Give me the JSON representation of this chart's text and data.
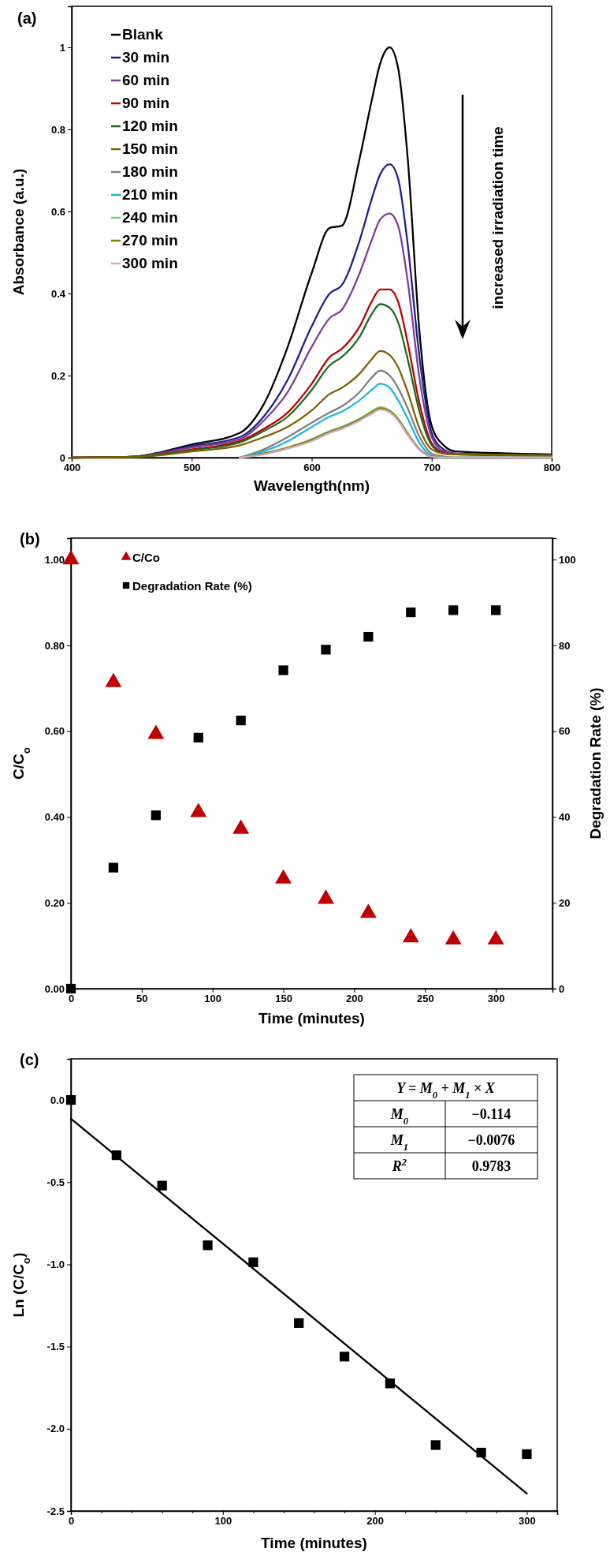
{
  "chart_data": [
    {
      "type": "line",
      "title": "(a)",
      "xlabel": "Wavelength(nm)",
      "ylabel": "Absorbance (a.u.)",
      "xlim": [
        400,
        800
      ],
      "xticks": [
        400,
        500,
        600,
        700,
        800
      ],
      "ylim": [
        0,
        1.1
      ],
      "yticks": [
        0,
        0.2,
        0.4,
        0.6,
        0.8,
        1
      ],
      "legend": "top left",
      "annotations": [
        "increased irradiation time"
      ],
      "x": [
        400,
        450,
        500,
        540,
        560,
        580,
        600,
        615,
        625,
        640,
        650,
        657,
        665,
        672,
        680,
        690,
        700,
        710,
        720,
        800
      ],
      "series": [
        {
          "name": "Blank",
          "color": "#000000",
          "values": [
            0,
            0.002,
            0.032,
            0.06,
            0.13,
            0.27,
            0.45,
            0.56,
            0.565,
            0.73,
            0.87,
            0.96,
            1.0,
            0.95,
            0.73,
            0.3,
            0.077,
            0.03,
            0.015,
            0.008
          ]
        },
        {
          "name": "30 min",
          "color": "#1f1f8f",
          "values": [
            0,
            0.002,
            0.028,
            0.05,
            0.1,
            0.19,
            0.32,
            0.4,
            0.42,
            0.53,
            0.63,
            0.69,
            0.715,
            0.68,
            0.52,
            0.24,
            0.06,
            0.02,
            0.01,
            0.006
          ]
        },
        {
          "name": "60 min",
          "color": "#7f3f98",
          "values": [
            0,
            0.002,
            0.025,
            0.045,
            0.09,
            0.16,
            0.27,
            0.34,
            0.36,
            0.45,
            0.53,
            0.58,
            0.595,
            0.565,
            0.43,
            0.19,
            0.05,
            0.015,
            0.01,
            0.005
          ]
        },
        {
          "name": "90 min",
          "color": "#c00000",
          "values": [
            0,
            0.002,
            0.02,
            0.04,
            0.07,
            0.11,
            0.18,
            0.245,
            0.265,
            0.32,
            0.38,
            0.41,
            0.41,
            0.38,
            0.28,
            0.13,
            0.035,
            0.012,
            0.008,
            0.005
          ]
        },
        {
          "name": "120  min",
          "color": "#1e6b1e",
          "values": [
            0,
            0.002,
            0.018,
            0.037,
            0.065,
            0.1,
            0.165,
            0.225,
            0.245,
            0.295,
            0.35,
            0.374,
            0.365,
            0.33,
            0.24,
            0.11,
            0.03,
            0.01,
            0.008,
            0.005
          ]
        },
        {
          "name": "150  min",
          "color": "#7f6000",
          "values": [
            0,
            0.001,
            0.015,
            0.03,
            0.05,
            0.075,
            0.115,
            0.155,
            0.17,
            0.205,
            0.24,
            0.26,
            0.25,
            0.22,
            0.16,
            0.07,
            0.02,
            0.01,
            0.008,
            0.006
          ]
        },
        {
          "name": "180 min",
          "color": "#808080",
          "values": [
            null,
            null,
            null,
            0,
            0.02,
            0.05,
            0.085,
            0.11,
            0.125,
            0.16,
            0.195,
            0.212,
            0.2,
            0.17,
            0.12,
            0.05,
            0.01,
            0.003,
            0,
            0
          ]
        },
        {
          "name": "210 min",
          "color": "#1fb4e6",
          "values": [
            null,
            null,
            null,
            0,
            0.015,
            0.04,
            0.075,
            0.1,
            0.112,
            0.14,
            0.165,
            0.18,
            0.17,
            0.14,
            0.095,
            0.035,
            0.005,
            0,
            0,
            0
          ]
        },
        {
          "name": "240 min",
          "color": "#7fc97f",
          "values": [
            null,
            null,
            null,
            0,
            0.01,
            0.025,
            0.045,
            0.065,
            0.075,
            0.095,
            0.113,
            0.123,
            0.115,
            0.095,
            0.06,
            0.02,
            0.003,
            0,
            0,
            0
          ]
        },
        {
          "name": "270 min",
          "color": "#7f7f00",
          "values": [
            null,
            null,
            null,
            0,
            0.01,
            0.024,
            0.043,
            0.063,
            0.073,
            0.093,
            0.11,
            0.12,
            0.113,
            0.093,
            0.058,
            0.02,
            0.003,
            0,
            0,
            0
          ]
        },
        {
          "name": "300 min",
          "color": "#d8a8c8",
          "values": [
            null,
            null,
            null,
            0,
            0.008,
            0.022,
            0.04,
            0.06,
            0.07,
            0.09,
            0.107,
            0.117,
            0.11,
            0.09,
            0.055,
            0.018,
            0.002,
            0,
            0,
            0
          ]
        }
      ]
    },
    {
      "type": "scatter",
      "title": "(b)",
      "xlabel": "Time (minutes)",
      "ylabel": "C/C$_{o}$",
      "y2label": "Degradation Rate (%)",
      "xlim": [
        0,
        340
      ],
      "xticks": [
        0,
        50,
        100,
        150,
        200,
        250,
        300
      ],
      "ylim": [
        0,
        1.05
      ],
      "yticks": [
        {
          "value": 0,
          "label": "0.00"
        },
        {
          "value": 0.2,
          "label": "0.20"
        },
        {
          "value": 0.4,
          "label": "0.40"
        },
        {
          "value": 0.6,
          "label": "0.60"
        },
        {
          "value": 0.8,
          "label": "0.80"
        },
        {
          "value": 1,
          "label": "1.00"
        }
      ],
      "y2lim": [
        0,
        105
      ],
      "y2ticks": [
        0,
        20,
        40,
        60,
        80,
        100
      ],
      "legend": "top left",
      "x": [
        0,
        30,
        60,
        90,
        120,
        150,
        180,
        210,
        240,
        270,
        300
      ],
      "series": [
        {
          "name": "C/Co",
          "color": "#c00000",
          "marker": "triangle",
          "values": [
            1.0,
            0.714,
            0.593,
            0.411,
            0.372,
            0.256,
            0.209,
            0.176,
            0.119,
            0.114,
            0.114
          ]
        },
        {
          "name": "Degradation Rate (%)",
          "color": "#000000",
          "marker": "square",
          "axis": "y2",
          "values": [
            0,
            28.2,
            40.4,
            58.5,
            62.5,
            74.2,
            79.0,
            82.0,
            87.7,
            88.2,
            88.2
          ]
        }
      ]
    },
    {
      "type": "scatter",
      "title": "(c)",
      "xlabel": "Time (minutes)",
      "ylabel": "Ln (C/C$_{o}$)",
      "xlim": [
        0,
        320
      ],
      "xticks": [
        0,
        {
          "value": 20,
          "label": null
        },
        {
          "value": 40,
          "label": null
        },
        {
          "value": 60,
          "label": null
        },
        {
          "value": 80,
          "label": null
        },
        100,
        {
          "value": 120,
          "label": null
        },
        {
          "value": 140,
          "label": null
        },
        {
          "value": 160,
          "label": null
        },
        {
          "value": 180,
          "label": null
        },
        200,
        {
          "value": 220,
          "label": null
        },
        {
          "value": 240,
          "label": null
        },
        {
          "value": 260,
          "label": null
        },
        {
          "value": 280,
          "label": null
        },
        300
      ],
      "ylim": [
        -2.5,
        0.25
      ],
      "yticks": [
        {
          "value": -2.5,
          "label": "-2.5"
        },
        {
          "value": -2,
          "label": "-2.0"
        },
        {
          "value": -1.5,
          "label": "-1.5"
        },
        {
          "value": -1,
          "label": "-1.0"
        },
        {
          "value": -0.5,
          "label": "-0.5"
        },
        {
          "value": 0,
          "label": "0.0"
        }
      ],
      "annotations": [
        "Y = M$_{0}$ + M$_{1}$ × X",
        "M$_{0}$",
        "−0.114",
        "M$_{1}$",
        "−0.0076",
        "R$^{2}$",
        "0.9783"
      ],
      "series": [
        {
          "color": "#000000",
          "marker": "square",
          "x": [
            0,
            30,
            60,
            90,
            120,
            150,
            180,
            210,
            240,
            270,
            300
          ],
          "values": [
            0,
            -0.336,
            -0.521,
            -0.884,
            -0.987,
            -1.357,
            -1.561,
            -1.724,
            -2.099,
            -2.145,
            -2.154
          ]
        },
        {
          "type": "line",
          "color": "#000000",
          "x": [
            0,
            300
          ],
          "values": [
            -0.114,
            -2.394
          ]
        }
      ]
    }
  ]
}
